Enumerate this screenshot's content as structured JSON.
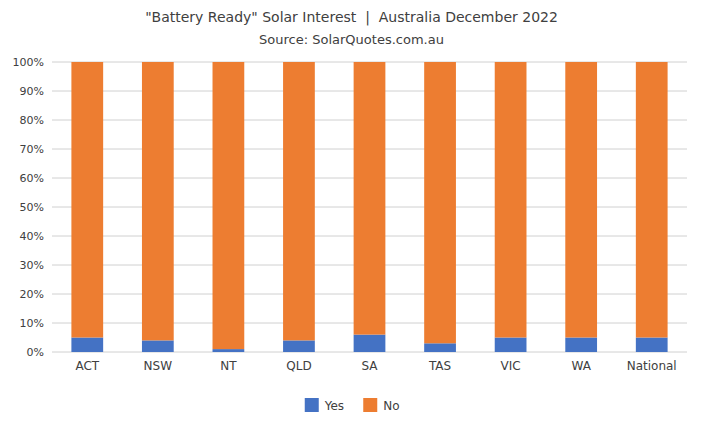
{
  "chart_data": {
    "type": "bar",
    "stacked": true,
    "title": "\"Battery Ready\" Solar Interest  |  Australia December 2022",
    "subtitle": "Source: SolarQuotes.com.au",
    "categories": [
      "ACT",
      "NSW",
      "NT",
      "QLD",
      "SA",
      "TAS",
      "VIC",
      "WA",
      "National"
    ],
    "series": [
      {
        "name": "Yes",
        "color": "#4472C4",
        "values": [
          5,
          4,
          1,
          4,
          6,
          3,
          5,
          5,
          5
        ]
      },
      {
        "name": "No",
        "color": "#ED7D31",
        "values": [
          95,
          96,
          99,
          96,
          94,
          97,
          95,
          95,
          95
        ]
      }
    ],
    "ylim": [
      0,
      100
    ],
    "yticks": [
      {
        "value": 0,
        "label": "0%"
      },
      {
        "value": 10,
        "label": "10%"
      },
      {
        "value": 20,
        "label": "20%"
      },
      {
        "value": 30,
        "label": "30%"
      },
      {
        "value": 40,
        "label": "40%"
      },
      {
        "value": 50,
        "label": "50%"
      },
      {
        "value": 60,
        "label": "60%"
      },
      {
        "value": 70,
        "label": "70%"
      },
      {
        "value": 80,
        "label": "80%"
      },
      {
        "value": 90,
        "label": "90%"
      },
      {
        "value": 100,
        "label": "100%"
      }
    ],
    "grid": true,
    "legend": "bottom"
  }
}
